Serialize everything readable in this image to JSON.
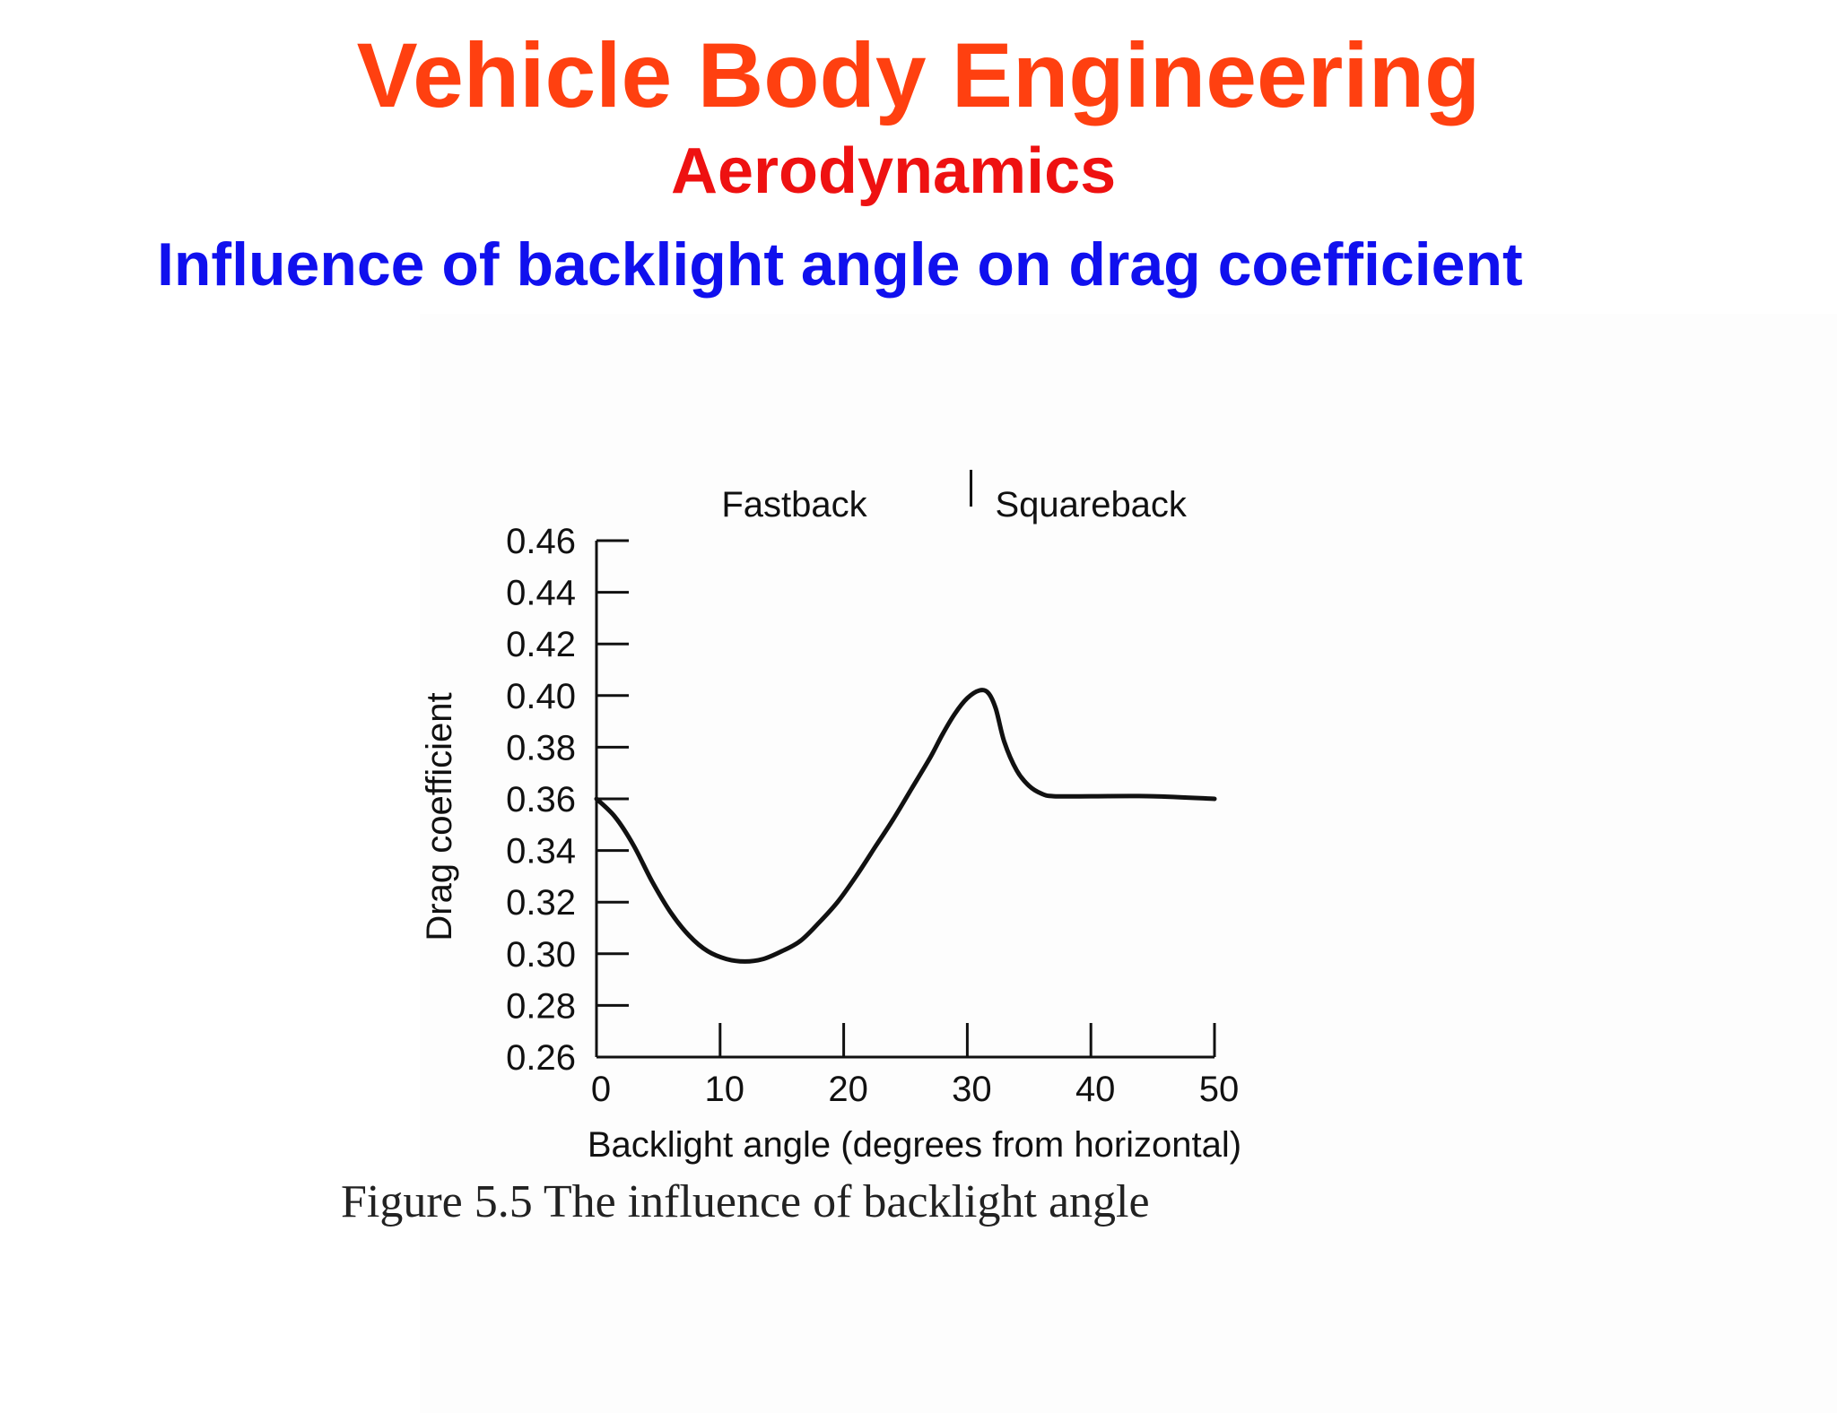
{
  "slide": {
    "title": "Vehicle Body Engineering",
    "subtitle": "Aerodynamics",
    "heading": "Influence of backlight angle on drag coefficient",
    "partial_caption": "Figure 5.5 The influence of backlight angle"
  },
  "colors": {
    "title": "#ff4010",
    "subtitle": "#ee1111",
    "heading": "#1010ee",
    "curve": "#111111"
  },
  "chart_data": {
    "type": "line",
    "title": "",
    "xlabel": "Backlight angle (degrees from horizontal)",
    "ylabel": "Drag coefficient",
    "xlim": [
      0,
      50
    ],
    "ylim": [
      0.26,
      0.46
    ],
    "x_ticks": [
      "0",
      "10",
      "20",
      "30",
      "40",
      "50"
    ],
    "y_ticks": [
      "0.46",
      "0.44",
      "0.42",
      "0.40",
      "0.38",
      "0.36",
      "0.34",
      "0.32",
      "0.30",
      "0.28",
      "0.26"
    ],
    "grid": false,
    "annotations": [
      {
        "text": "Fastback",
        "x": 16
      },
      {
        "text": "Squareback",
        "x": 40
      }
    ],
    "divider_x": 30.3,
    "series": [
      {
        "x": [
          0,
          1.5,
          3,
          4.5,
          6,
          7.5,
          9,
          10.5,
          12,
          13.5,
          15,
          16.5,
          18,
          19.5,
          21,
          22.5,
          24,
          25.5,
          27,
          28,
          29,
          30,
          31,
          31.7,
          32.3,
          33,
          34,
          35,
          36,
          37,
          40,
          45,
          50
        ],
        "y": [
          0.36,
          0.353,
          0.342,
          0.328,
          0.316,
          0.307,
          0.301,
          0.298,
          0.297,
          0.298,
          0.301,
          0.305,
          0.312,
          0.32,
          0.33,
          0.341,
          0.352,
          0.364,
          0.376,
          0.385,
          0.393,
          0.399,
          0.402,
          0.401,
          0.395,
          0.382,
          0.371,
          0.365,
          0.362,
          0.361,
          0.361,
          0.361,
          0.36
        ]
      }
    ]
  }
}
